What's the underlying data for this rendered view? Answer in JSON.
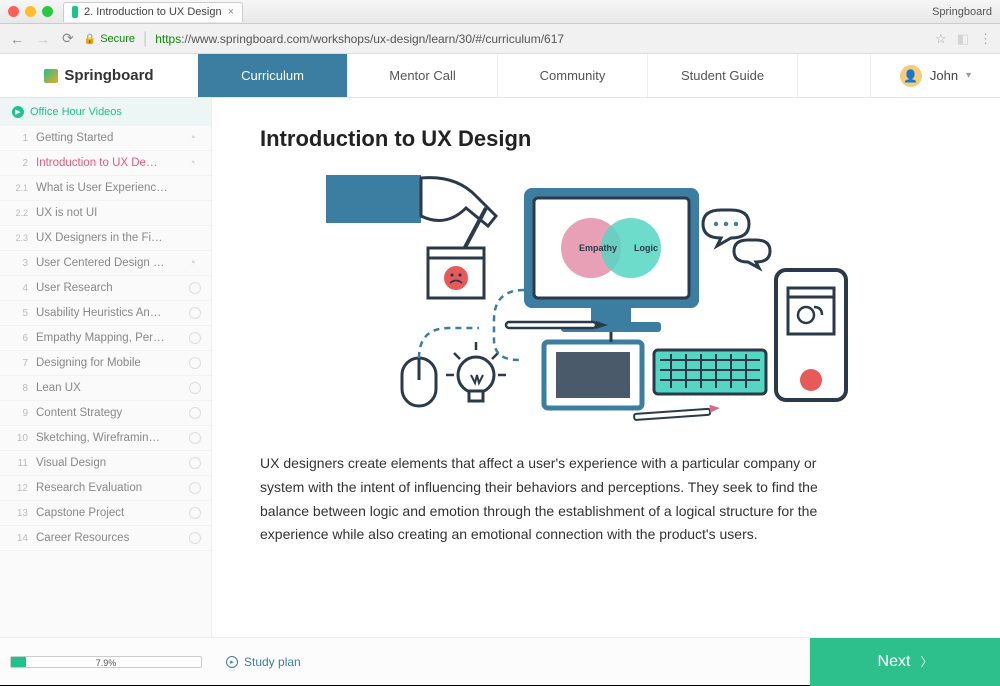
{
  "browser": {
    "tab_title": "2. Introduction to UX Design",
    "app_name": "Springboard",
    "secure_label": "Secure",
    "url_scheme": "https",
    "url_rest": "://www.springboard.com/workshops/ux-design/learn/30/#/curriculum/617"
  },
  "header": {
    "brand": "Springboard",
    "nav": [
      {
        "label": "Curriculum",
        "active": true
      },
      {
        "label": "Mentor Call",
        "active": false
      },
      {
        "label": "Community",
        "active": false
      },
      {
        "label": "Student Guide",
        "active": false
      }
    ],
    "user_name": "John"
  },
  "sidebar": {
    "header": "Office Hour Videos",
    "items": [
      {
        "num": "1",
        "label": "Getting Started",
        "status": "clock",
        "active": false,
        "sub": false
      },
      {
        "num": "2",
        "label": "Introduction to UX De…",
        "status": "clock",
        "active": true,
        "sub": false
      },
      {
        "num": "2.1",
        "label": "What is User Experienc…",
        "status": "none",
        "active": false,
        "sub": true
      },
      {
        "num": "2.2",
        "label": "UX is not UI",
        "status": "none",
        "active": false,
        "sub": true
      },
      {
        "num": "2.3",
        "label": "UX Designers in the Fi…",
        "status": "none",
        "active": false,
        "sub": true
      },
      {
        "num": "3",
        "label": "User Centered Design …",
        "status": "clock",
        "active": false,
        "sub": false
      },
      {
        "num": "4",
        "label": "User Research",
        "status": "circle",
        "active": false,
        "sub": false
      },
      {
        "num": "5",
        "label": "Usability Heuristics An…",
        "status": "circle",
        "active": false,
        "sub": false
      },
      {
        "num": "6",
        "label": "Empathy Mapping, Per…",
        "status": "circle",
        "active": false,
        "sub": false
      },
      {
        "num": "7",
        "label": "Designing for Mobile",
        "status": "circle",
        "active": false,
        "sub": false
      },
      {
        "num": "8",
        "label": "Lean UX",
        "status": "circle",
        "active": false,
        "sub": false
      },
      {
        "num": "9",
        "label": "Content Strategy",
        "status": "circle",
        "active": false,
        "sub": false
      },
      {
        "num": "10",
        "label": "Sketching, Wireframin…",
        "status": "circle",
        "active": false,
        "sub": false
      },
      {
        "num": "11",
        "label": "Visual Design",
        "status": "circle",
        "active": false,
        "sub": false
      },
      {
        "num": "12",
        "label": "Research Evaluation",
        "status": "circle",
        "active": false,
        "sub": false
      },
      {
        "num": "13",
        "label": "Capstone Project",
        "status": "circle",
        "active": false,
        "sub": false
      },
      {
        "num": "14",
        "label": "Career Resources",
        "status": "circle",
        "active": false,
        "sub": false
      }
    ]
  },
  "content": {
    "title": "Introduction to UX Design",
    "paragraph": "UX designers create elements that affect a user's experience with a particular company or system with the intent of influencing their behaviors and perceptions. They seek to find the balance between logic and emotion through the establishment of a logical structure for the experience while also creating an emotional connection with the product's users.",
    "illustration": {
      "venn_left_label": "Empathy",
      "venn_right_label": "Logic",
      "colors": {
        "stroke": "#2b3a4a",
        "blue": "#3b7ea1",
        "teal": "#55d6c2",
        "pink": "#e38fa8",
        "pink_dark": "#d76a88",
        "red": "#e85a5a",
        "accent": "#2dc08d"
      }
    }
  },
  "footer": {
    "progress_pct": 7.9,
    "study_plan_label": "Study plan",
    "next_label": "Next"
  },
  "colors": {
    "nav_active_bg": "#3b7ea1",
    "brand_teal": "#1ec28b",
    "active_pink": "#e85a7a",
    "next_bg": "#2dc08d"
  }
}
